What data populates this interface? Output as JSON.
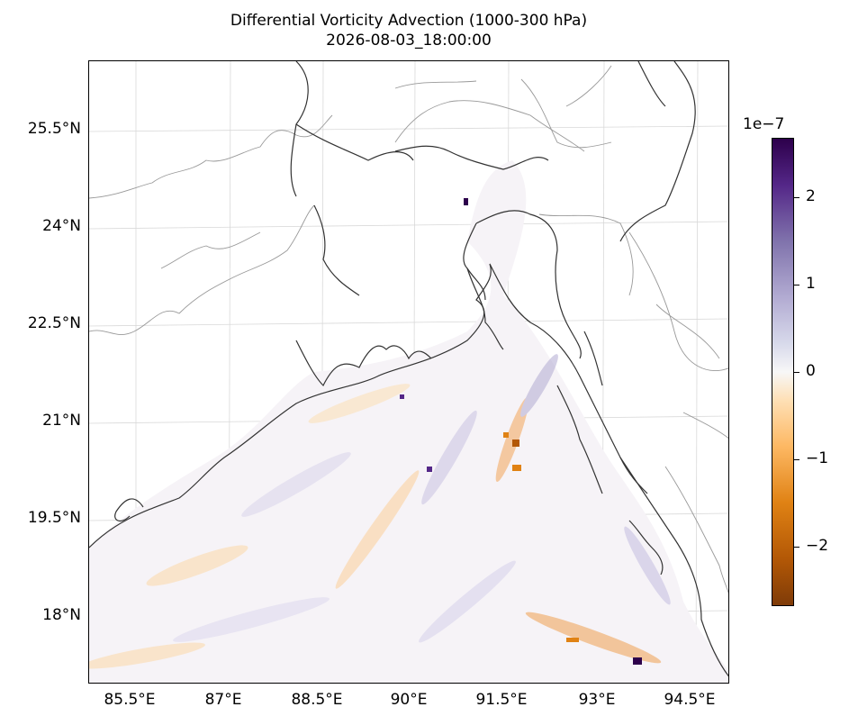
{
  "title": {
    "line1": "Differential Vorticity Advection (1000-300 hPa)",
    "line2": "2026-08-03_18:00:00"
  },
  "map": {
    "region": "Bay of Bengal / Bangladesh",
    "colormap": "PuOr",
    "lat_ticks": [
      "25.5°N",
      "24°N",
      "22.5°N",
      "21°N",
      "19.5°N",
      "18°N"
    ],
    "lon_ticks": [
      "85.5°E",
      "87°E",
      "88.5°E",
      "90°E",
      "91.5°E",
      "93°E",
      "94.5°E"
    ],
    "coastline_color": "#333333",
    "border_color": "#999999"
  },
  "colorbar": {
    "exponent_label": "1e−7",
    "ticks": [
      "2",
      "1",
      "0",
      "−1",
      "−2"
    ],
    "range": [
      -2.6,
      2.6
    ],
    "colors": [
      "#2d004b",
      "#542788",
      "#8073ac",
      "#b2abd2",
      "#d8daeb",
      "#f7f7f7",
      "#fee0b6",
      "#fdb863",
      "#e08214",
      "#b35806",
      "#7f3b08"
    ]
  }
}
